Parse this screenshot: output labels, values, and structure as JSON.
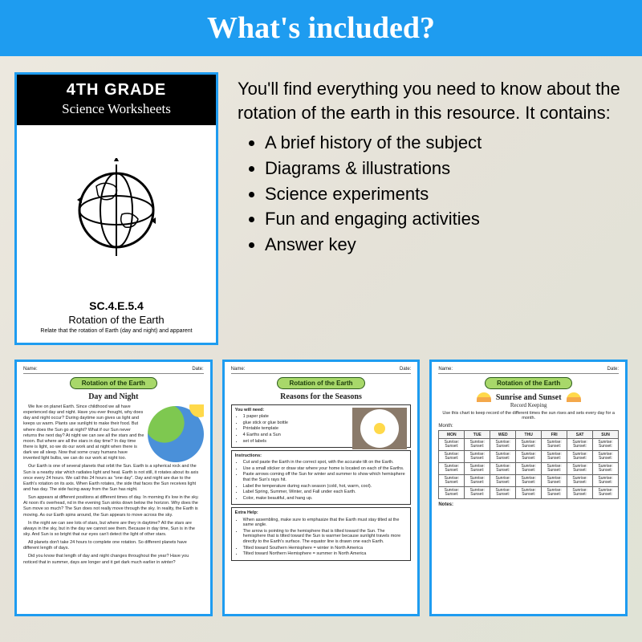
{
  "header": {
    "title": "What's included?"
  },
  "cover": {
    "grade": "4TH GRADE",
    "subtitle": "Science Worksheets",
    "code": "SC.4.E.5.4",
    "topic": "Rotation of the Earth",
    "desc": "Relate that the rotation of Earth (day and night) and apparent"
  },
  "description": {
    "intro": "You'll find everything you need to know about the rotation of the earth in this resource. It contains:",
    "bullets": [
      "A brief history of the subject",
      "Diagrams & illustrations",
      "Science experiments",
      "Fun and engaging activities",
      "Answer key"
    ]
  },
  "ws_common": {
    "name_label": "Name:",
    "date_label": "Date:",
    "pill": "Rotation of the Earth"
  },
  "ws1": {
    "title": "Day and Night",
    "p1": "We live on planet Earth. Since childhood we all have experienced day and night. Have you ever thought, why does day and night occur? During daytime sun gives us light and keeps us warm. Plants use sunlight to make their food. But where does the Sun go at night? What if our Sun never returns the next day? At night we can see all the stars and the moon. But where are all the stars in day time? In day time there is light, so we do our work and at night when there is dark we all sleep. Now that some crazy humans have invented light bulbs, we can do our work at night too.",
    "p2": "Our Earth is one of several planets that orbit the Sun. Earth is a spherical rock and the Sun is a nearby star which radiates light and heat. Earth is not still, it rotates about its axis once every 24 hours. We call this 24 hours as \"one day\". Day and night are due to the Earth's rotation on its axis. When Earth rotates, the side that faces the Sun receives light and has day. The side facing away from the Sun has night.",
    "p3": "Sun appears at different positions at different times of day. In morning it's low in the sky. At noon it's overhead, nd in the evening Sun sinks down below the horizon. Why does the Sun move so much? The Sun does not really move through the sky. In reality, the Earth is moving. As our Earth spins around, the Sun appears to move across the sky.",
    "p4": "In the night we can see lots of stars, but where are they in daytime? All the stars are always in the sky, but in the day we cannot see them. Because in day time, Sun is in the sky. And Sun is so bright that our eyes can't detect the light of other stars.",
    "p5": "All planets don't take 24 hours to complete one rotation. So different planets have different length of days.",
    "p6": "Did you know that length of day and night changes throughout the year? Have you noticed that in summer, days are longer and it get dark much earlier in winter?"
  },
  "ws2": {
    "title": "Reasons for the Seasons",
    "need_title": "You will need:",
    "need": [
      "1 paper plate",
      "glue stick or glue bottle",
      "Printable template",
      "4 Earths and a Sun",
      "set of labels"
    ],
    "instr_title": "Instructions:",
    "instr": [
      "Cut and paste the Earth in the correct spot, with the accurate tilt on the Earth.",
      "Use a small sticker or draw star where your home is located on each of the Earths.",
      "Paste arrows coming off the Sun for winter and summer to show which hemisphere that the Sun's rays hit.",
      "Label the temperature during each season (cold, hot, warm, cool).",
      "Label Spring, Summer, Winter, and Fall under each Earth.",
      "Color, make beautiful, and hang up."
    ],
    "help_title": "Extra Help:",
    "help": [
      "When assembling, make sure to emphasize that the Earth must stay tilted at the same angle.",
      "The arrow is pointing to the hemisphere that is tilted toward the Sun. The hemisphere that is tilted toward the Sun is warmer because sunlight travels more directly to the Earth's surface. The equator line is drawn one each Earth.",
      "Tilted toward Southern Hemisphere = winter in North America",
      "Tilted toward Northern Hemisphere = summer in North America"
    ]
  },
  "ws3": {
    "title": "Sunrise and Sunset",
    "subtitle": "Record Keeping",
    "desc": "Use this chart to keep record of the different times the sun rises and sets every day for a month.",
    "month_label": "Month:",
    "days": [
      "MON",
      "TUE",
      "WED",
      "THU",
      "FRI",
      "SAT",
      "SUN"
    ],
    "cell_rise": "Sunrise:",
    "cell_set": "Sunset:",
    "rows": 5,
    "notes_label": "Notes:"
  },
  "colors": {
    "blue": "#1e9cf0",
    "pill_green": "#a8d86a",
    "pill_border": "#2a5a1a"
  }
}
